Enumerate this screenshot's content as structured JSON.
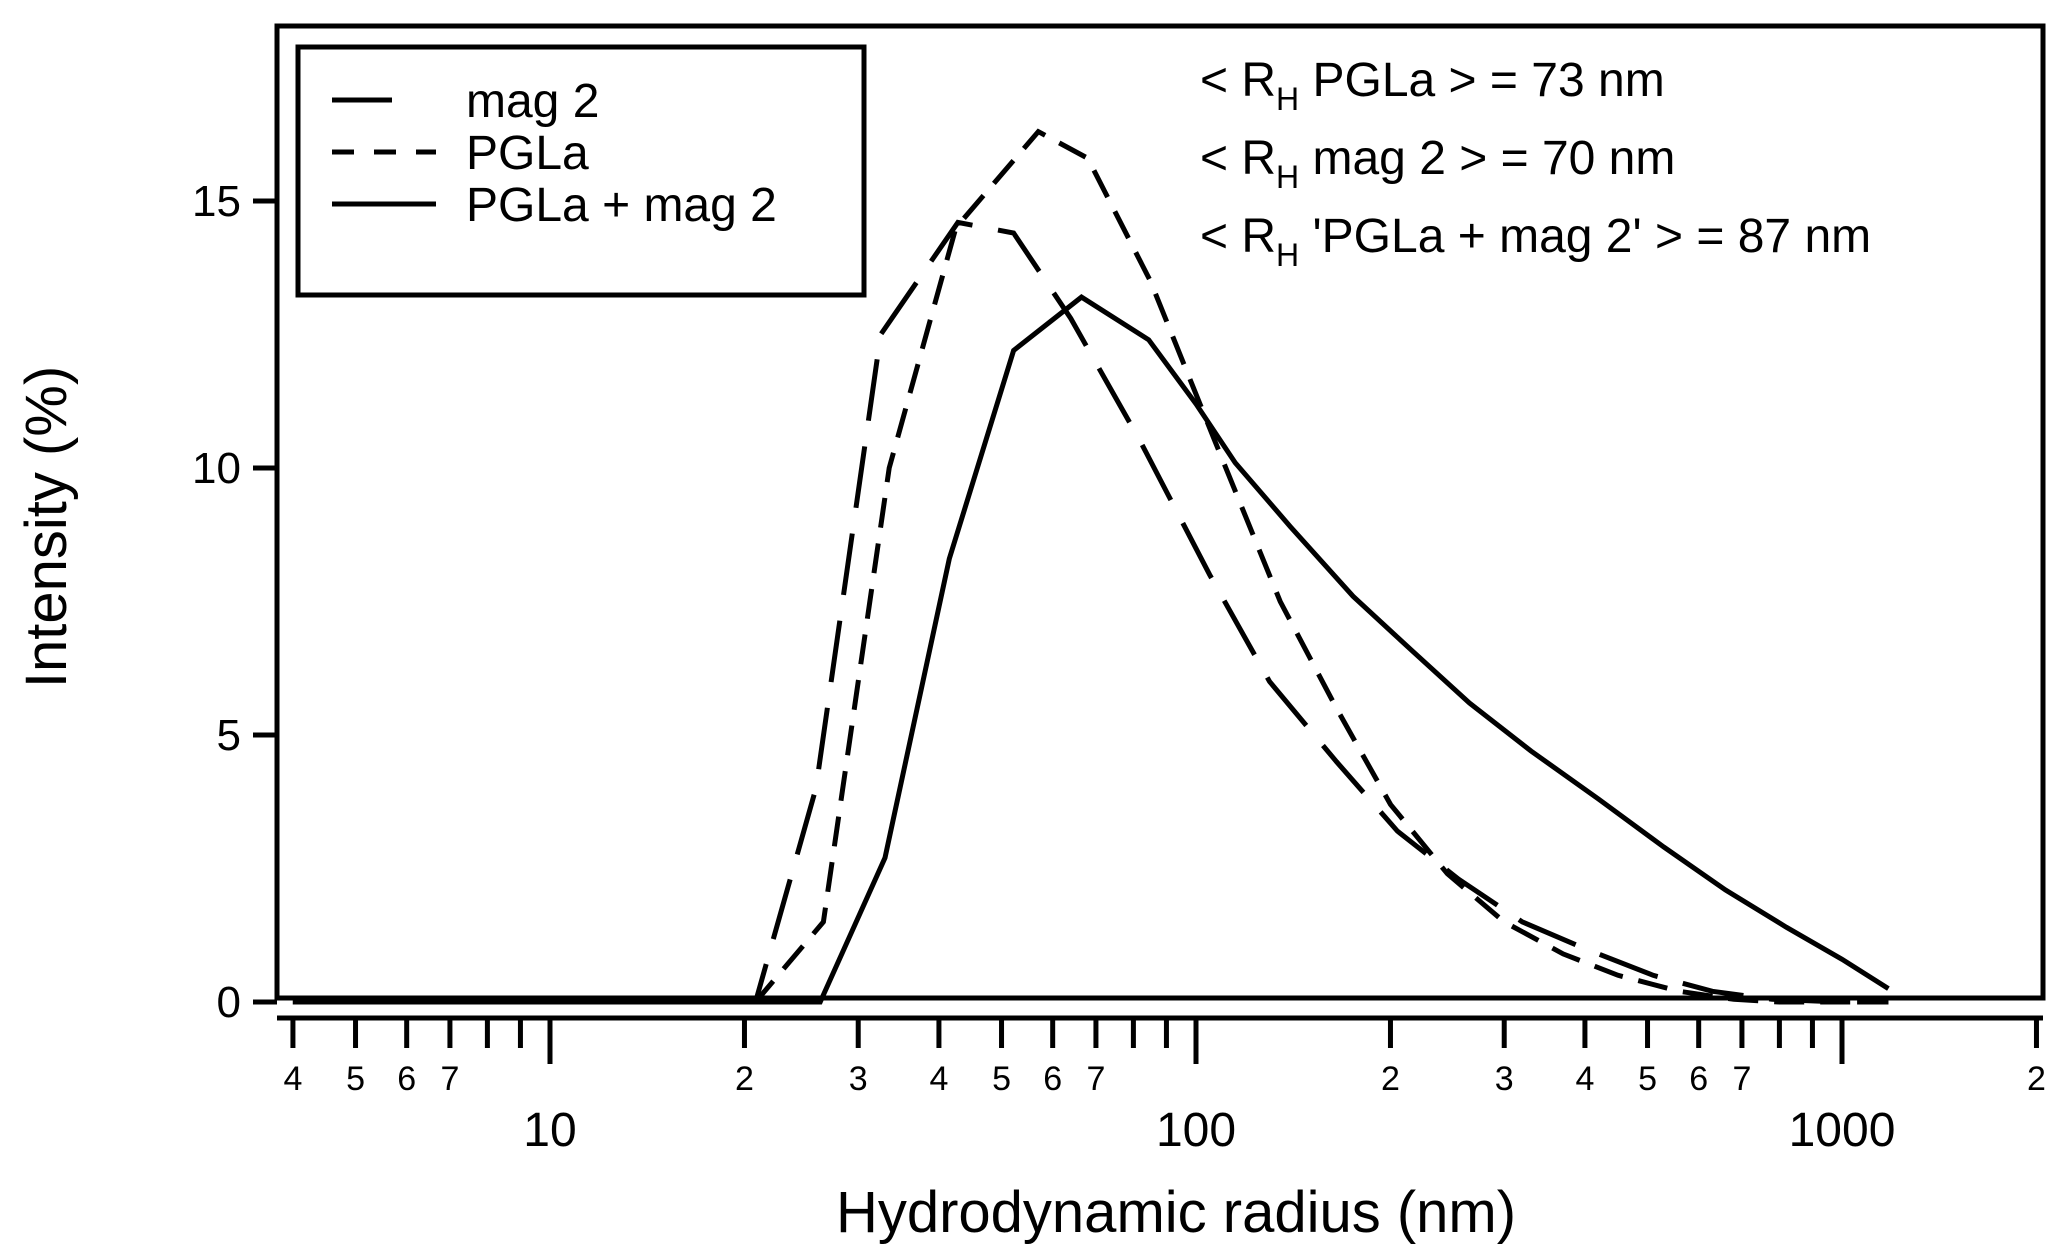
{
  "chart_data": {
    "type": "line",
    "xlabel": "Hydrodynamic radius (nm)",
    "ylabel": "Intensity (%)",
    "xscale": "log",
    "xlim": [
      3.8,
      2200
    ],
    "ylim": [
      0,
      18
    ],
    "grid": false,
    "legend_position": "top-left",
    "y_ticks": [
      {
        "value": 0,
        "label": "0"
      },
      {
        "value": 5,
        "label": "5"
      },
      {
        "value": 10,
        "label": "10"
      },
      {
        "value": 15,
        "label": "15"
      }
    ],
    "x_major_ticks": [
      {
        "value": 10,
        "label": "10"
      },
      {
        "value": 100,
        "label": "100"
      },
      {
        "value": 1000,
        "label": "1000"
      }
    ],
    "x_minor_ticks": [
      {
        "value": 4,
        "label": "4"
      },
      {
        "value": 5,
        "label": "5"
      },
      {
        "value": 6,
        "label": "6"
      },
      {
        "value": 7,
        "label": "7"
      },
      {
        "value": 8,
        "label": ""
      },
      {
        "value": 9,
        "label": ""
      },
      {
        "value": 20,
        "label": "2"
      },
      {
        "value": 30,
        "label": "3"
      },
      {
        "value": 40,
        "label": "4"
      },
      {
        "value": 50,
        "label": "5"
      },
      {
        "value": 60,
        "label": "6"
      },
      {
        "value": 70,
        "label": "7"
      },
      {
        "value": 80,
        "label": ""
      },
      {
        "value": 90,
        "label": ""
      },
      {
        "value": 200,
        "label": "2"
      },
      {
        "value": 300,
        "label": "3"
      },
      {
        "value": 400,
        "label": "4"
      },
      {
        "value": 500,
        "label": "5"
      },
      {
        "value": 600,
        "label": "6"
      },
      {
        "value": 700,
        "label": "7"
      },
      {
        "value": 800,
        "label": ""
      },
      {
        "value": 900,
        "label": ""
      },
      {
        "value": 2000,
        "label": "2"
      }
    ],
    "series": [
      {
        "name": "mag 2",
        "style": "long-dash",
        "x": [
          4,
          20.8,
          25.8,
          32.5,
          42.8,
          52.2,
          64,
          82,
          105,
          130,
          165,
          205,
          255,
          320,
          400,
          510,
          630,
          780,
          1000,
          1180
        ],
        "y": [
          0,
          0,
          4.0,
          12.5,
          14.6,
          14.4,
          12.8,
          10.5,
          8.0,
          6.0,
          4.5,
          3.2,
          2.3,
          1.5,
          1.0,
          0.5,
          0.2,
          0.05,
          0,
          0
        ]
      },
      {
        "name": "PGLa",
        "style": "short-dash",
        "x": [
          4,
          20.8,
          26.5,
          33.5,
          42.5,
          57,
          68,
          85,
          107,
          135,
          165,
          200,
          245,
          300,
          370,
          450,
          560,
          680,
          800,
          1000,
          1180
        ],
        "y": [
          0,
          0,
          1.5,
          10.0,
          14.5,
          16.3,
          15.8,
          13.5,
          10.5,
          7.5,
          5.5,
          3.7,
          2.4,
          1.5,
          0.9,
          0.5,
          0.2,
          0.05,
          0,
          0,
          0
        ]
      },
      {
        "name": "PGLa + mag 2",
        "style": "solid",
        "x": [
          4,
          26.2,
          33,
          41.5,
          52.2,
          66.5,
          84.5,
          100,
          115,
          140,
          175,
          215,
          265,
          330,
          420,
          530,
          660,
          820,
          1000,
          1180
        ],
        "y": [
          0,
          0,
          2.7,
          8.3,
          12.2,
          13.2,
          12.4,
          11.2,
          10.1,
          8.9,
          7.6,
          6.6,
          5.6,
          4.7,
          3.8,
          2.9,
          2.1,
          1.4,
          0.8,
          0.25
        ]
      }
    ],
    "annotations": [
      {
        "prefix": "< R",
        "subscript": "H",
        "suffix": " PGLa > = 73 nm"
      },
      {
        "prefix": "< R",
        "subscript": "H",
        "suffix": " mag 2 > = 70 nm"
      },
      {
        "prefix": "< R",
        "subscript": "H",
        "suffix": " 'PGLa + mag 2' > = 87 nm"
      }
    ]
  }
}
